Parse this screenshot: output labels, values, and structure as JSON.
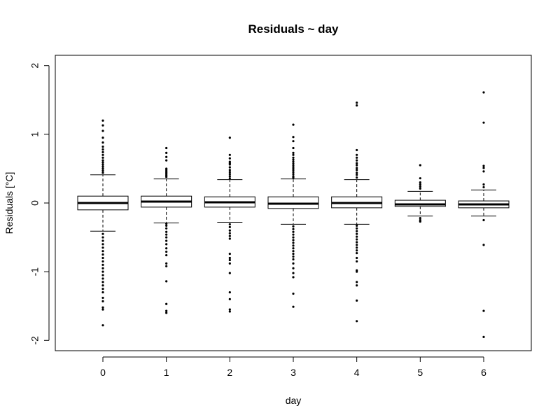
{
  "chart_data": {
    "type": "box",
    "title": "Residuals ~ day",
    "xlabel": "day",
    "ylabel": "Residuals [°C]",
    "ylim": [
      -2.15,
      2.15
    ],
    "xlim": [
      -0.75,
      6.75
    ],
    "yticks": [
      -2,
      -1,
      0,
      1,
      2
    ],
    "ytick_labels": [
      "-2",
      "-1",
      "0",
      "1",
      "2"
    ],
    "categories": [
      "0",
      "1",
      "2",
      "3",
      "4",
      "5",
      "6"
    ],
    "boxes": [
      {
        "category": "0",
        "q1": -0.1,
        "median": 0.0,
        "q3": 0.1,
        "whisker_low": -0.41,
        "whisker_high": 0.41,
        "outliers": [
          1.2,
          1.13,
          1.05,
          0.95,
          0.88,
          0.82,
          0.78,
          0.74,
          0.7,
          0.66,
          0.62,
          0.59,
          0.56,
          0.53,
          0.5,
          0.47,
          0.44,
          -0.45,
          -0.5,
          -0.55,
          -0.6,
          -0.65,
          -0.7,
          -0.75,
          -0.8,
          -0.85,
          -0.9,
          -0.95,
          -1.0,
          -1.05,
          -1.1,
          -1.15,
          -1.2,
          -1.25,
          -1.3,
          -1.38,
          -1.43,
          -1.52,
          -1.55,
          -1.78
        ]
      },
      {
        "category": "1",
        "q1": -0.06,
        "median": 0.02,
        "q3": 0.1,
        "whisker_low": -0.29,
        "whisker_high": 0.35,
        "outliers": [
          0.8,
          0.73,
          0.67,
          0.62,
          0.5,
          0.48,
          0.46,
          0.44,
          0.42,
          0.4,
          0.38,
          -0.3,
          -0.33,
          -0.37,
          -0.42,
          -0.46,
          -0.5,
          -0.55,
          -0.6,
          -0.66,
          -0.71,
          -0.76,
          -0.88,
          -0.92,
          -1.14,
          -1.47,
          -1.57,
          -1.6
        ]
      },
      {
        "category": "2",
        "q1": -0.06,
        "median": 0.01,
        "q3": 0.09,
        "whisker_low": -0.28,
        "whisker_high": 0.34,
        "outliers": [
          0.95,
          0.7,
          0.65,
          0.6,
          0.58,
          0.56,
          0.52,
          0.48,
          0.45,
          0.42,
          0.39,
          0.36,
          -0.31,
          -0.35,
          -0.4,
          -0.44,
          -0.48,
          -0.52,
          -0.74,
          -0.8,
          -0.83,
          -0.88,
          -1.02,
          -1.3,
          -1.4,
          -1.55,
          -1.58
        ]
      },
      {
        "category": "3",
        "q1": -0.08,
        "median": -0.01,
        "q3": 0.09,
        "whisker_low": -0.31,
        "whisker_high": 0.35,
        "outliers": [
          1.14,
          0.96,
          0.9,
          0.8,
          0.73,
          0.7,
          0.66,
          0.63,
          0.6,
          0.57,
          0.54,
          0.51,
          0.48,
          0.45,
          0.42,
          0.39,
          0.37,
          -0.34,
          -0.38,
          -0.42,
          -0.46,
          -0.5,
          -0.54,
          -0.58,
          -0.62,
          -0.66,
          -0.7,
          -0.74,
          -0.78,
          -0.82,
          -0.88,
          -0.95,
          -1.02,
          -1.08,
          -1.32,
          -1.51
        ]
      },
      {
        "category": "4",
        "q1": -0.07,
        "median": 0.0,
        "q3": 0.09,
        "whisker_low": -0.31,
        "whisker_high": 0.34,
        "outliers": [
          1.46,
          1.42,
          0.77,
          0.7,
          0.66,
          0.62,
          0.58,
          0.55,
          0.51,
          0.48,
          0.44,
          0.41,
          0.37,
          -0.33,
          -0.37,
          -0.41,
          -0.45,
          -0.49,
          -0.53,
          -0.57,
          -0.61,
          -0.65,
          -0.69,
          -0.73,
          -0.8,
          -0.85,
          -0.98,
          -1.0,
          -1.15,
          -1.2,
          -1.42,
          -1.72
        ]
      },
      {
        "category": "5",
        "q1": -0.05,
        "median": -0.02,
        "q3": 0.04,
        "whisker_low": -0.19,
        "whisker_high": 0.17,
        "outliers": [
          0.55,
          0.36,
          0.3,
          0.27,
          0.24,
          0.21,
          -0.22,
          -0.25,
          -0.27
        ]
      },
      {
        "category": "6",
        "q1": -0.07,
        "median": -0.02,
        "q3": 0.03,
        "whisker_low": -0.19,
        "whisker_high": 0.19,
        "outliers": [
          1.61,
          1.17,
          0.54,
          0.51,
          0.46,
          0.27,
          0.23,
          -0.25,
          -0.61,
          -1.57,
          -1.95
        ]
      }
    ]
  }
}
